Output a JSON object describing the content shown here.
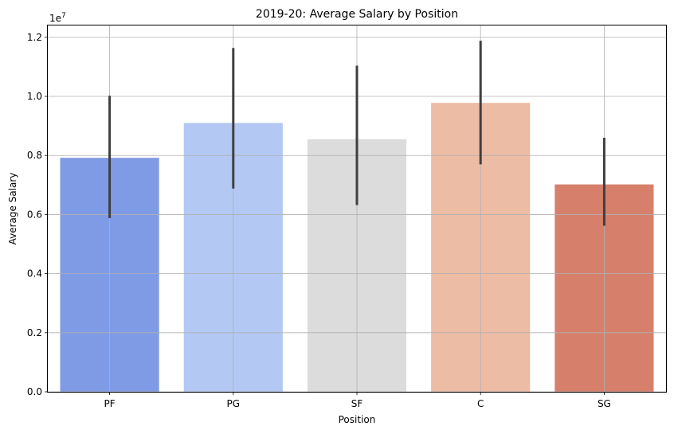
{
  "chart_data": {
    "type": "bar",
    "title": "2019-20: Average Salary by Position",
    "xlabel": "Position",
    "ylabel": "Average Salary",
    "y_offset_label": "1e7",
    "categories": [
      "PF",
      "PG",
      "SF",
      "C",
      "SG"
    ],
    "values": [
      7920000,
      9100000,
      8550000,
      9780000,
      7020000
    ],
    "error_low": [
      5880000,
      6880000,
      6320000,
      7700000,
      5620000
    ],
    "error_high": [
      10020000,
      11640000,
      11040000,
      11880000,
      8600000
    ],
    "bar_colors": [
      "#7f9be5",
      "#b3c8f3",
      "#dcdcdc",
      "#ecbca5",
      "#d6806c"
    ],
    "ylim": [
      0,
      12400000
    ],
    "yticks": [
      0,
      2000000,
      4000000,
      6000000,
      8000000,
      10000000,
      12000000
    ],
    "ytick_labels": [
      "0.0",
      "0.2",
      "0.4",
      "0.6",
      "0.8",
      "1.0",
      "1.2"
    ],
    "grid": true
  }
}
